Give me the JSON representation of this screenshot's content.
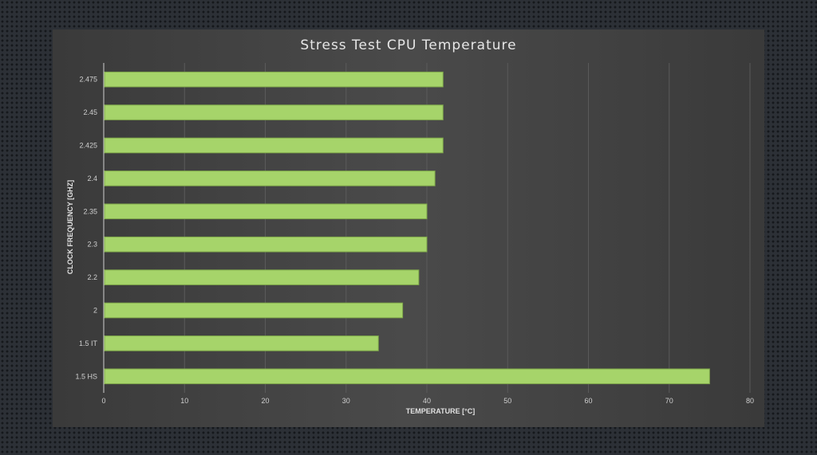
{
  "chart_data": {
    "type": "bar",
    "orientation": "horizontal",
    "title": "Stress Test CPU Temperature",
    "xlabel": "TEMPERATURE [°C]",
    "ylabel": "CLOCK FREQUENCY [GHZ]",
    "categories": [
      "2.475",
      "2.45",
      "2.425",
      "2.4",
      "2.35",
      "2.3",
      "2.2",
      "2",
      "1.5 IT",
      "1.5 HS"
    ],
    "values": [
      42,
      42,
      42,
      41,
      40,
      40,
      39,
      37,
      34,
      75
    ],
    "xlim": [
      0,
      80
    ],
    "xticks": [
      "0",
      "10",
      "20",
      "30",
      "40",
      "50",
      "60",
      "70",
      "80"
    ],
    "grid": "vertical",
    "bar_color": "#a6d46a"
  }
}
